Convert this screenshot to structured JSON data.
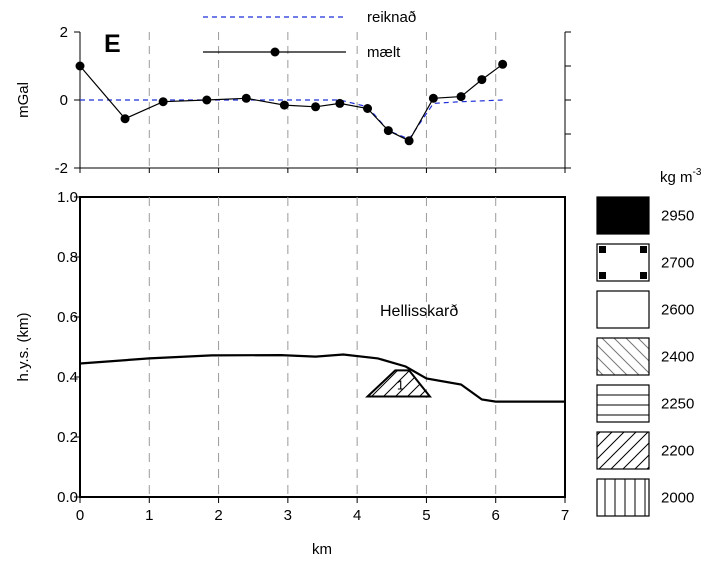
{
  "panel_label": "E",
  "legend": {
    "computed_label": "reiknað",
    "measured_label": "mælt"
  },
  "colors": {
    "computed_line": "#1f2fd8",
    "measured_line": "#000000",
    "grid": "#9a9a9a"
  },
  "density_legend": {
    "unit_base": "kg m",
    "unit_exp": "-3",
    "items": [
      {
        "value": "2950",
        "pattern": "solid-black"
      },
      {
        "value": "2700",
        "pattern": "black-squares"
      },
      {
        "value": "2600",
        "pattern": "blank"
      },
      {
        "value": "2400",
        "pattern": "diagonal-backslash"
      },
      {
        "value": "2250",
        "pattern": "horizontal-lines"
      },
      {
        "value": "2200",
        "pattern": "diagonal-slash"
      },
      {
        "value": "2000",
        "pattern": "vertical-lines"
      }
    ]
  },
  "chart_data": [
    {
      "type": "line",
      "ylabel": "mGal",
      "ylim": [
        -2,
        2
      ],
      "xlim": [
        0,
        7
      ],
      "yticks": [
        2,
        0,
        -2
      ],
      "grid": "vertical-dashed",
      "series": [
        {
          "name": "mælt",
          "marker": "circle",
          "x": [
            0.0,
            0.65,
            1.2,
            1.83,
            2.4,
            2.95,
            3.4,
            3.75,
            4.15,
            4.45,
            4.75,
            5.1,
            5.5,
            5.8,
            6.1
          ],
          "values": [
            1.0,
            -0.55,
            -0.05,
            0.0,
            0.05,
            -0.15,
            -0.2,
            -0.1,
            -0.25,
            -0.9,
            -1.2,
            0.05,
            0.1,
            0.6,
            1.05
          ]
        },
        {
          "name": "reiknað",
          "style": "dashed",
          "x": [
            0.0,
            1.2,
            1.83,
            2.4,
            2.95,
            3.4,
            3.75,
            4.15,
            4.45,
            4.75,
            5.1,
            5.5,
            6.1
          ],
          "values": [
            0.0,
            0.0,
            0.0,
            0.0,
            0.0,
            0.0,
            0.0,
            -0.2,
            -0.9,
            -1.15,
            -0.1,
            -0.05,
            0.0
          ]
        }
      ]
    },
    {
      "type": "line",
      "xlabel": "km",
      "ylabel": "h.y.s. (km)",
      "xlim": [
        0,
        7
      ],
      "ylim": [
        0.0,
        1.0
      ],
      "xticks": [
        "0",
        "1",
        "2",
        "3",
        "4",
        "5",
        "6",
        "7"
      ],
      "yticks": [
        "0.0",
        "0.2",
        "0.4",
        "0.6",
        "0.8",
        "1.0"
      ],
      "grid": "vertical-dashed",
      "annotation": "Hellisskarð",
      "topography": {
        "x": [
          0.0,
          1.0,
          1.9,
          2.9,
          3.4,
          3.8,
          4.3,
          4.7,
          5.0,
          5.5,
          5.8,
          6.0,
          7.0
        ],
        "values": [
          0.445,
          0.462,
          0.472,
          0.473,
          0.468,
          0.475,
          0.462,
          0.435,
          0.395,
          0.375,
          0.325,
          0.318,
          0.318
        ]
      },
      "bodies": [
        {
          "label": "1",
          "density": "2200",
          "x": [
            4.15,
            4.55,
            4.75,
            5.05
          ],
          "values": [
            0.335,
            0.422,
            0.422,
            0.335
          ]
        }
      ]
    }
  ]
}
